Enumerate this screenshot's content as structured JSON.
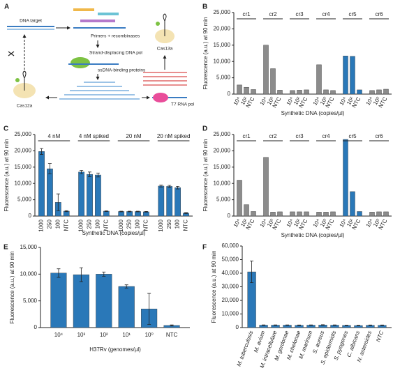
{
  "diagram": {
    "panel": "A",
    "labels": [
      "DNA target",
      "Primers + recombinases",
      "Strand-displacing DNA pol",
      "ssDNA-binding proteins",
      "T7 RNA pol",
      "Cas12a",
      "Cas13a"
    ]
  },
  "chart_data": [
    {
      "panel": "B",
      "type": "bar",
      "ylabel": "Fluorescence (a.u.) at 90 min",
      "xlabel": "Synthetic DNA (copies/µl)",
      "ylim": [
        0,
        25000
      ],
      "yticks": [
        0,
        {
          "value": 5000,
          "label": "5,000"
        },
        {
          "value": 10000,
          "label": "10,000"
        },
        {
          "value": 15000,
          "label": "15,000"
        },
        {
          "value": 20000,
          "label": "20,000"
        },
        {
          "value": 25000,
          "label": "25,000"
        }
      ],
      "groups": [
        {
          "name": "cr1",
          "categories": [
            "10⁴",
            "10²",
            "NTC"
          ],
          "values": [
            2800,
            2100,
            1400
          ],
          "color": "#8c8c8c"
        },
        {
          "name": "cr2",
          "categories": [
            "10⁴",
            "10²",
            "NTC"
          ],
          "values": [
            15000,
            7800,
            1200
          ],
          "color": "#8c8c8c"
        },
        {
          "name": "cr3",
          "categories": [
            "10⁴",
            "10²",
            "NTC"
          ],
          "values": [
            1100,
            1200,
            1300
          ],
          "color": "#8c8c8c"
        },
        {
          "name": "cr4",
          "categories": [
            "10⁴",
            "10²",
            "NTC"
          ],
          "values": [
            9000,
            1300,
            1100
          ],
          "color": "#8c8c8c"
        },
        {
          "name": "cr5",
          "categories": [
            "10⁴",
            "10²",
            "NTC"
          ],
          "values": [
            11700,
            11600,
            1300
          ],
          "color": "#2a78b8"
        },
        {
          "name": "cr6",
          "categories": [
            "10⁴",
            "10²",
            "NTC"
          ],
          "values": [
            1100,
            1300,
            1500
          ],
          "color": "#8c8c8c"
        }
      ]
    },
    {
      "panel": "C",
      "type": "bar",
      "ylabel": "Fluorescence (a.u.) at 90 min",
      "xlabel": "Synthetic DNA (copies/µl)",
      "ylim": [
        0,
        25000
      ],
      "yticks": [
        0,
        {
          "value": 5000,
          "label": "5,000"
        },
        {
          "value": 10000,
          "label": "10,000"
        },
        {
          "value": 15000,
          "label": "15,000"
        },
        {
          "value": 20000,
          "label": "20,000"
        },
        {
          "value": 25000,
          "label": "25,000"
        }
      ],
      "groups": [
        {
          "name": "4 nM",
          "categories": [
            "1000",
            "250",
            "100",
            "NTC"
          ],
          "values": [
            19800,
            14500,
            4200,
            1500
          ],
          "errors": [
            900,
            1600,
            2600,
            150
          ],
          "color": "#2a78b8"
        },
        {
          "name": "4 nM spiked",
          "categories": [
            "1000",
            "250",
            "100",
            "NTC"
          ],
          "values": [
            13500,
            12800,
            12600,
            1500
          ],
          "errors": [
            500,
            700,
            600,
            100
          ],
          "color": "#2a78b8"
        },
        {
          "name": "20 nM",
          "categories": [
            "1000",
            "250",
            "100",
            "NTC"
          ],
          "values": [
            1400,
            1400,
            1400,
            1300
          ],
          "errors": [
            100,
            100,
            100,
            100
          ],
          "color": "#2a78b8"
        },
        {
          "name": "20 nM spiked",
          "categories": [
            "1000",
            "250",
            "100",
            "NTC"
          ],
          "values": [
            9200,
            9100,
            8700,
            900
          ],
          "errors": [
            300,
            300,
            400,
            150
          ],
          "color": "#2a78b8"
        }
      ]
    },
    {
      "panel": "D",
      "type": "bar",
      "ylabel": "Fluorescence (a.u.) at 90 min",
      "xlabel": "Synthetic DNA (copies/µl)",
      "ylim": [
        0,
        25000
      ],
      "yticks": [
        0,
        {
          "value": 5000,
          "label": "5,000"
        },
        {
          "value": 10000,
          "label": "10,000"
        },
        {
          "value": 15000,
          "label": "15,000"
        },
        {
          "value": 20000,
          "label": "20,000"
        },
        {
          "value": 25000,
          "label": "25,000"
        }
      ],
      "groups": [
        {
          "name": "cr1",
          "categories": [
            "10⁴",
            "10²",
            "NTC"
          ],
          "values": [
            11000,
            3500,
            1400
          ],
          "color": "#8c8c8c"
        },
        {
          "name": "cr2",
          "categories": [
            "10⁴",
            "10²",
            "NTC"
          ],
          "values": [
            18000,
            1200,
            1300
          ],
          "color": "#8c8c8c"
        },
        {
          "name": "cr3",
          "categories": [
            "10⁴",
            "10²",
            "NTC"
          ],
          "values": [
            1300,
            1300,
            1300
          ],
          "color": "#8c8c8c"
        },
        {
          "name": "cr4",
          "categories": [
            "10⁴",
            "10²",
            "NTC"
          ],
          "values": [
            1200,
            1200,
            1300
          ],
          "color": "#8c8c8c"
        },
        {
          "name": "cr5",
          "categories": [
            "10⁴",
            "10²",
            "NTC"
          ],
          "values": [
            23500,
            7500,
            1400
          ],
          "color": "#2a78b8"
        },
        {
          "name": "cr6",
          "categories": [
            "10⁴",
            "10²",
            "NTC"
          ],
          "values": [
            1200,
            1300,
            1300
          ],
          "color": "#8c8c8c"
        }
      ]
    },
    {
      "panel": "E",
      "type": "bar",
      "ylabel": "Fluorescence (a.u.) at 90 min",
      "xlabel": "H37Rv (genomes/µl)",
      "ylim": [
        0,
        15000
      ],
      "yticks": [
        0,
        {
          "value": 5000,
          "label": "5,000"
        },
        {
          "value": 10000,
          "label": "10,000"
        },
        {
          "value": 15000,
          "label": "15,000"
        }
      ],
      "categories": [
        "10⁴",
        "10³",
        "10²",
        "10¹",
        "10⁰",
        "NTC"
      ],
      "values": [
        10200,
        9900,
        10000,
        7700,
        3500,
        400
      ],
      "errors": [
        800,
        1300,
        400,
        300,
        2900,
        100
      ],
      "color": "#2a78b8"
    },
    {
      "panel": "F",
      "type": "bar",
      "ylabel": "Fluorescence (a.u.) at 90 min",
      "ylim": [
        0,
        60000
      ],
      "yticks": [
        0,
        {
          "value": 10000,
          "label": "10,000"
        },
        {
          "value": 20000,
          "label": "20,000"
        },
        {
          "value": 30000,
          "label": "30,000"
        },
        {
          "value": 40000,
          "label": "40,000"
        },
        {
          "value": 50000,
          "label": "50,000"
        },
        {
          "value": 60000,
          "label": "60,000"
        }
      ],
      "categories": [
        "M. tuberculosis",
        "M. avium",
        "M. intracellulare",
        "M. gordonae",
        "M. chelonae",
        "M. marinum",
        "S. aureus",
        "S. epidermidis",
        "S. pyogenes",
        "C. albicans",
        "N. asteroides",
        "NTC"
      ],
      "values": [
        41000,
        1800,
        1800,
        1800,
        1700,
        1800,
        1900,
        1800,
        1600,
        1500,
        1700,
        1700
      ],
      "errors": [
        8000,
        200,
        200,
        200,
        200,
        200,
        200,
        200,
        200,
        200,
        200,
        200
      ],
      "color": "#2a78b8"
    }
  ]
}
